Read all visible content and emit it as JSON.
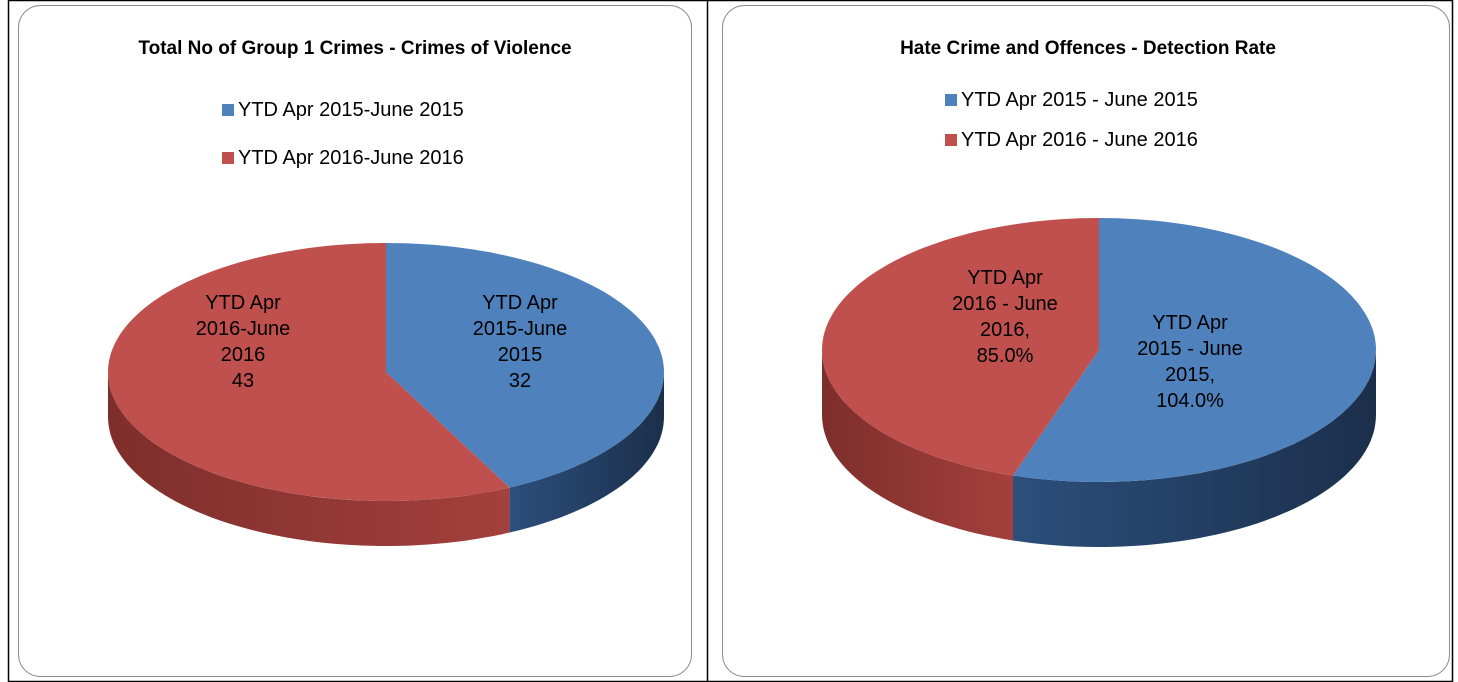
{
  "chart_data": [
    {
      "type": "pie",
      "title": "Total No of Group 1 Crimes - Crimes of Violence",
      "categories": [
        "YTD Apr 2015-June 2015",
        "YTD Apr 2016-June 2016"
      ],
      "values": [
        32,
        43
      ],
      "colors": [
        "#4f81bd",
        "#c0504d"
      ]
    },
    {
      "type": "pie",
      "title": "Hate Crime and Offences - Detection Rate",
      "categories": [
        "YTD Apr 2015 - June 2015",
        "YTD Apr 2016 - June 2016"
      ],
      "values": [
        104.0,
        85.0
      ],
      "value_labels": [
        "104.0%",
        "85.0%"
      ],
      "label_separator": ",",
      "colors": [
        "#4f81bd",
        "#c0504d"
      ]
    }
  ]
}
